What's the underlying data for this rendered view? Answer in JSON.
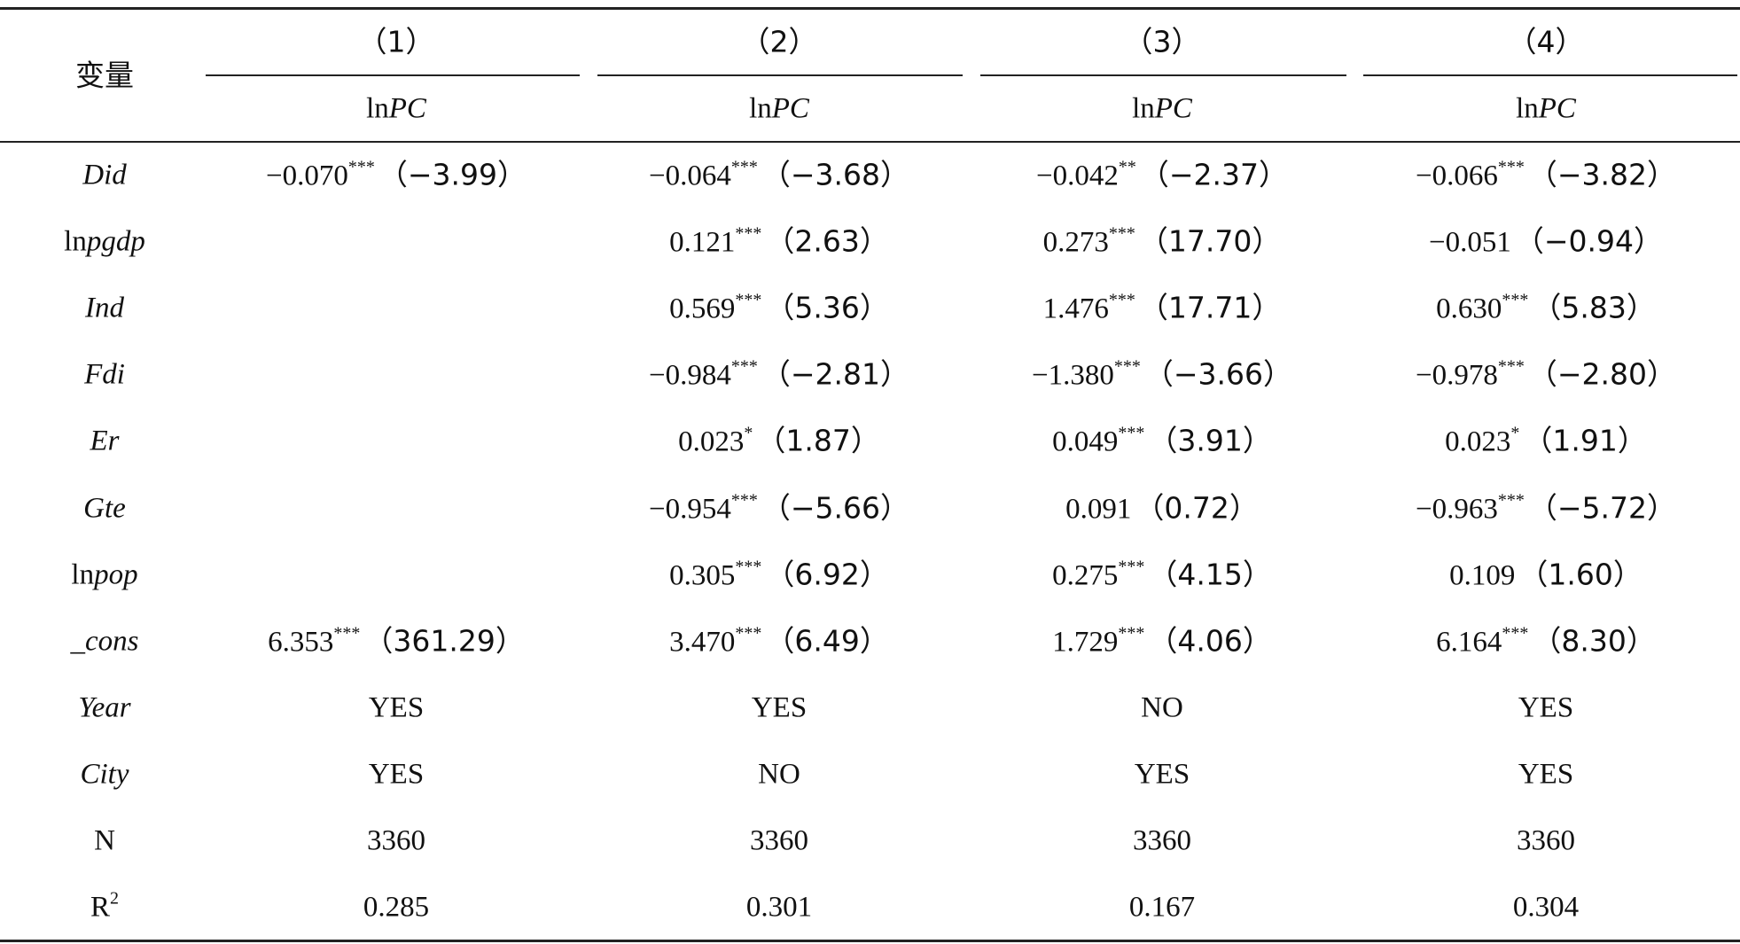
{
  "table": {
    "header": {
      "variable": "变量",
      "columns": [
        "（1）",
        "（2）",
        "（3）",
        "（4）"
      ],
      "dependent": [
        {
          "roman": "ln",
          "italic": "PC"
        },
        {
          "roman": "ln",
          "italic": "PC"
        },
        {
          "roman": "ln",
          "italic": "PC"
        },
        {
          "roman": "ln",
          "italic": "PC"
        }
      ]
    },
    "rows": [
      {
        "label": {
          "italic": "Did"
        },
        "cells": [
          {
            "coef": "−0.070",
            "stars": "***",
            "t": "（−3.99）"
          },
          {
            "coef": "−0.064",
            "stars": "***",
            "t": "（−3.68）"
          },
          {
            "coef": "−0.042",
            "stars": "**",
            "t": "（−2.37）"
          },
          {
            "coef": "−0.066",
            "stars": "***",
            "t": "（−3.82）"
          }
        ]
      },
      {
        "label": {
          "roman": "ln",
          "italic": "pgdp"
        },
        "cells": [
          null,
          {
            "coef": "0.121",
            "stars": "***",
            "t": "（2.63）"
          },
          {
            "coef": "0.273",
            "stars": "***",
            "t": "（17.70）"
          },
          {
            "coef": "−0.051",
            "t": "（−0.94）"
          }
        ]
      },
      {
        "label": {
          "italic": "Ind"
        },
        "cells": [
          null,
          {
            "coef": "0.569",
            "stars": "***",
            "t": "（5.36）"
          },
          {
            "coef": "1.476",
            "stars": "***",
            "t": "（17.71）"
          },
          {
            "coef": "0.630",
            "stars": "***",
            "t": "（5.83）"
          }
        ]
      },
      {
        "label": {
          "italic": "Fdi"
        },
        "cells": [
          null,
          {
            "coef": "−0.984",
            "stars": "***",
            "t": "（−2.81）"
          },
          {
            "coef": "−1.380",
            "stars": "***",
            "t": "（−3.66）"
          },
          {
            "coef": "−0.978",
            "stars": "***",
            "t": "（−2.80）"
          }
        ]
      },
      {
        "label": {
          "italic": "Er"
        },
        "cells": [
          null,
          {
            "coef": "0.023",
            "stars": "*",
            "t": "（1.87）"
          },
          {
            "coef": "0.049",
            "stars": "***",
            "t": "（3.91）"
          },
          {
            "coef": "0.023",
            "stars": "*",
            "t": "（1.91）"
          }
        ]
      },
      {
        "label": {
          "italic": "Gte"
        },
        "cells": [
          null,
          {
            "coef": "−0.954",
            "stars": "***",
            "t": "（−5.66）"
          },
          {
            "coef": "0.091",
            "t": "（0.72）"
          },
          {
            "coef": "−0.963",
            "stars": "***",
            "t": "（−5.72）"
          }
        ]
      },
      {
        "label": {
          "roman": "ln",
          "italic": "pop"
        },
        "cells": [
          null,
          {
            "coef": "0.305",
            "stars": "***",
            "t": "（6.92）"
          },
          {
            "coef": "0.275",
            "stars": "***",
            "t": "（4.15）"
          },
          {
            "coef": "0.109",
            "t": "（1.60）"
          }
        ]
      },
      {
        "label": {
          "italic": "_cons"
        },
        "cells": [
          {
            "coef": "6.353",
            "stars": "***",
            "t": "（361.29）"
          },
          {
            "coef": "3.470",
            "stars": "***",
            "t": "（6.49）"
          },
          {
            "coef": "1.729",
            "stars": "***",
            "t": "（4.06）"
          },
          {
            "coef": "6.164",
            "stars": "***",
            "t": "（8.30）"
          }
        ]
      },
      {
        "label": {
          "italic": "Year"
        },
        "cells": [
          {
            "coef": "YES"
          },
          {
            "coef": "YES"
          },
          {
            "coef": "NO"
          },
          {
            "coef": "YES"
          }
        ]
      },
      {
        "label": {
          "italic": "City"
        },
        "cells": [
          {
            "coef": "YES"
          },
          {
            "coef": "NO"
          },
          {
            "coef": "YES"
          },
          {
            "coef": "YES"
          }
        ]
      },
      {
        "label": {
          "roman": "N"
        },
        "cells": [
          {
            "coef": "3360"
          },
          {
            "coef": "3360"
          },
          {
            "coef": "3360"
          },
          {
            "coef": "3360"
          }
        ]
      },
      {
        "label": {
          "roman": "R",
          "sup": "2"
        },
        "cells": [
          {
            "coef": "0.285"
          },
          {
            "coef": "0.301"
          },
          {
            "coef": "0.167"
          },
          {
            "coef": "0.304"
          }
        ]
      }
    ]
  }
}
